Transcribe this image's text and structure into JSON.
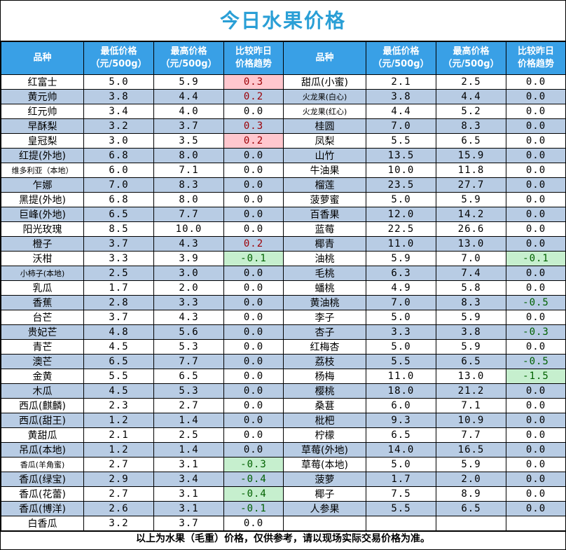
{
  "title": "今日水果价格",
  "headers": {
    "name": "品种",
    "min": [
      "最低价格",
      "（元/500g）"
    ],
    "max": [
      "最高价格",
      "（元/500g）"
    ],
    "trend": [
      "比较昨日",
      "价格趋势"
    ]
  },
  "rows": [
    {
      "left": {
        "name": "红富士",
        "min": "5.0",
        "max": "5.9",
        "trend": "0.3"
      },
      "right": {
        "name": "甜瓜(小蜜)",
        "min": "2.1",
        "max": "2.5",
        "trend": "0.0"
      }
    },
    {
      "left": {
        "name": "黄元帅",
        "min": "3.8",
        "max": "4.4",
        "trend": "0.2"
      },
      "right": {
        "name": "火龙果(白心)",
        "min": "3.8",
        "max": "4.4",
        "trend": "0.0"
      }
    },
    {
      "left": {
        "name": "红元帅",
        "min": "3.4",
        "max": "4.0",
        "trend": "0.0"
      },
      "right": {
        "name": "火龙果(红心)",
        "min": "4.4",
        "max": "5.2",
        "trend": "0.0"
      }
    },
    {
      "left": {
        "name": "早酥梨",
        "min": "3.2",
        "max": "3.7",
        "trend": "0.3"
      },
      "right": {
        "name": "桂圆",
        "min": "7.0",
        "max": "8.3",
        "trend": "0.0"
      }
    },
    {
      "left": {
        "name": "皇冠梨",
        "min": "3.0",
        "max": "3.5",
        "trend": "0.2"
      },
      "right": {
        "name": "凤梨",
        "min": "5.5",
        "max": "6.5",
        "trend": "0.0"
      }
    },
    {
      "left": {
        "name": "红提(外地)",
        "min": "6.8",
        "max": "8.0",
        "trend": "0.0"
      },
      "right": {
        "name": "山竹",
        "min": "13.5",
        "max": "15.9",
        "trend": "0.0"
      }
    },
    {
      "left": {
        "name": "维多利亚（本地）",
        "min": "6.0",
        "max": "7.1",
        "trend": "0.0"
      },
      "right": {
        "name": "牛油果",
        "min": "10.0",
        "max": "11.8",
        "trend": "0.0"
      }
    },
    {
      "left": {
        "name": "乍娜",
        "min": "7.0",
        "max": "8.3",
        "trend": "0.0"
      },
      "right": {
        "name": "榴莲",
        "min": "23.5",
        "max": "27.7",
        "trend": "0.0"
      }
    },
    {
      "left": {
        "name": "黑提(外地)",
        "min": "6.8",
        "max": "8.0",
        "trend": "0.0"
      },
      "right": {
        "name": "菠萝蜜",
        "min": "5.0",
        "max": "5.9",
        "trend": "0.0"
      }
    },
    {
      "left": {
        "name": "巨峰(外地)",
        "min": "6.5",
        "max": "7.7",
        "trend": "0.0"
      },
      "right": {
        "name": "百香果",
        "min": "12.0",
        "max": "14.2",
        "trend": "0.0"
      }
    },
    {
      "left": {
        "name": "阳光玫瑰",
        "min": "8.5",
        "max": "10.0",
        "trend": "0.0"
      },
      "right": {
        "name": "蓝莓",
        "min": "22.5",
        "max": "26.6",
        "trend": "0.0"
      }
    },
    {
      "left": {
        "name": "橙子",
        "min": "3.7",
        "max": "4.3",
        "trend": "0.2"
      },
      "right": {
        "name": "椰青",
        "min": "11.0",
        "max": "13.0",
        "trend": "0.0"
      }
    },
    {
      "left": {
        "name": "沃柑",
        "min": "3.3",
        "max": "3.9",
        "trend": "-0.1"
      },
      "right": {
        "name": "油桃",
        "min": "5.9",
        "max": "7.0",
        "trend": "-0.1"
      }
    },
    {
      "left": {
        "name": "小柿子(本地)",
        "min": "2.5",
        "max": "3.0",
        "trend": "0.0"
      },
      "right": {
        "name": "毛桃",
        "min": "6.3",
        "max": "7.4",
        "trend": "0.0"
      }
    },
    {
      "left": {
        "name": "乳瓜",
        "min": "1.7",
        "max": "2.0",
        "trend": "0.0"
      },
      "right": {
        "name": "蟠桃",
        "min": "4.9",
        "max": "5.8",
        "trend": "0.0"
      }
    },
    {
      "left": {
        "name": "香蕉",
        "min": "2.8",
        "max": "3.3",
        "trend": "0.0"
      },
      "right": {
        "name": "黄油桃",
        "min": "7.0",
        "max": "8.3",
        "trend": "-0.5"
      }
    },
    {
      "left": {
        "name": "台芒",
        "min": "3.7",
        "max": "4.3",
        "trend": "0.0"
      },
      "right": {
        "name": "李子",
        "min": "5.0",
        "max": "5.9",
        "trend": "0.0"
      }
    },
    {
      "left": {
        "name": "贵妃芒",
        "min": "4.8",
        "max": "5.6",
        "trend": "0.0"
      },
      "right": {
        "name": "杏子",
        "min": "3.3",
        "max": "3.8",
        "trend": "-0.3"
      }
    },
    {
      "left": {
        "name": "青芒",
        "min": "4.5",
        "max": "5.3",
        "trend": "0.0"
      },
      "right": {
        "name": "红梅杏",
        "min": "5.0",
        "max": "5.9",
        "trend": "0.0"
      }
    },
    {
      "left": {
        "name": "澳芒",
        "min": "6.5",
        "max": "7.7",
        "trend": "0.0"
      },
      "right": {
        "name": "荔枝",
        "min": "5.5",
        "max": "6.5",
        "trend": "-0.5"
      }
    },
    {
      "left": {
        "name": "金黄",
        "min": "5.5",
        "max": "6.5",
        "trend": "0.0"
      },
      "right": {
        "name": "杨梅",
        "min": "11.0",
        "max": "13.0",
        "trend": "-1.5"
      }
    },
    {
      "left": {
        "name": "木瓜",
        "min": "4.5",
        "max": "5.3",
        "trend": "0.0"
      },
      "right": {
        "name": "樱桃",
        "min": "18.0",
        "max": "21.2",
        "trend": "0.0"
      }
    },
    {
      "left": {
        "name": "西瓜(麒麟)",
        "min": "2.3",
        "max": "2.7",
        "trend": "0.0"
      },
      "right": {
        "name": "桑葚",
        "min": "6.0",
        "max": "7.1",
        "trend": "0.0"
      }
    },
    {
      "left": {
        "name": "西瓜(甜王)",
        "min": "1.2",
        "max": "1.4",
        "trend": "0.0"
      },
      "right": {
        "name": "枇杷",
        "min": "9.3",
        "max": "10.9",
        "trend": "0.0"
      }
    },
    {
      "left": {
        "name": "黄甜瓜",
        "min": "2.1",
        "max": "2.5",
        "trend": "0.0"
      },
      "right": {
        "name": "柠檬",
        "min": "6.5",
        "max": "7.7",
        "trend": "0.0"
      }
    },
    {
      "left": {
        "name": "吊瓜(本地)",
        "min": "1.2",
        "max": "1.4",
        "trend": "0.0"
      },
      "right": {
        "name": "草莓(外地)",
        "min": "14.0",
        "max": "16.5",
        "trend": "0.0"
      }
    },
    {
      "left": {
        "name": "香瓜(羊角蜜)",
        "min": "2.7",
        "max": "3.1",
        "trend": "-0.3"
      },
      "right": {
        "name": "草莓(本地)",
        "min": "5.0",
        "max": "5.9",
        "trend": "0.0"
      }
    },
    {
      "left": {
        "name": "香瓜(绿宝)",
        "min": "2.9",
        "max": "3.4",
        "trend": "-0.4"
      },
      "right": {
        "name": "菠萝",
        "min": "1.7",
        "max": "2.0",
        "trend": "0.0"
      }
    },
    {
      "left": {
        "name": "香瓜(花蕾)",
        "min": "2.7",
        "max": "3.1",
        "trend": "-0.4"
      },
      "right": {
        "name": "椰子",
        "min": "7.5",
        "max": "8.9",
        "trend": "0.0"
      }
    },
    {
      "left": {
        "name": "香瓜(博洋)",
        "min": "2.6",
        "max": "3.1",
        "trend": "-0.1"
      },
      "right": {
        "name": "人参果",
        "min": "5.5",
        "max": "6.5",
        "trend": "0.0"
      }
    },
    {
      "left": {
        "name": "白香瓜",
        "min": "3.2",
        "max": "3.7",
        "trend": "0.0"
      },
      "right": {
        "name": "",
        "min": "",
        "max": "",
        "trend": ""
      }
    }
  ],
  "footer": "以上为水果（毛重）价格，仅供参考，请以现场实际交易价格为准。",
  "colors": {
    "title": "#2a9fd6",
    "header_bg": "#39a0e6",
    "alt_row": "#b8cce4",
    "price_up_bg": "#ffc7ce",
    "price_up_text": "#9c0006",
    "price_down_bg": "#c6efce",
    "price_down_text": "#006100"
  }
}
